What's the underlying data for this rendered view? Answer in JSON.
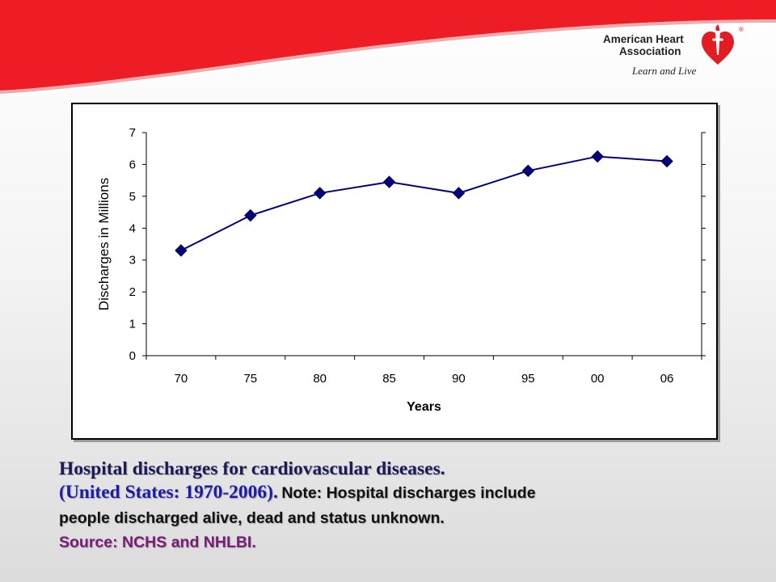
{
  "brand": {
    "name_line1": "American Heart",
    "name_line2": "Association",
    "registered": "®",
    "tagline": "Learn and Live",
    "colors": {
      "banner_red": "#ee1c25",
      "heart_red": "#e31b23"
    }
  },
  "caption": {
    "title": "Hospital discharges for cardiovascular diseases.",
    "subtitle": "(United States: 1970-2006).",
    "note_line1": "Note: Hospital discharges include",
    "note_line2": "people discharged alive, dead and status unknown.",
    "source": "Source: NCHS and NHLBI."
  },
  "chart_data": {
    "type": "line",
    "title": "",
    "xlabel": "Years",
    "ylabel": "Discharges in Millions",
    "categories": [
      "70",
      "75",
      "80",
      "85",
      "90",
      "95",
      "00",
      "06"
    ],
    "series": [
      {
        "values": [
          3.3,
          4.4,
          5.1,
          5.45,
          5.1,
          5.8,
          6.25,
          6.1
        ],
        "color": "#000080"
      }
    ],
    "ylim": [
      0,
      7
    ],
    "yticks": [
      "0",
      "1",
      "2",
      "3",
      "4",
      "5",
      "6",
      "7"
    ],
    "grid": false,
    "legend": "none",
    "marker": "diamond"
  }
}
